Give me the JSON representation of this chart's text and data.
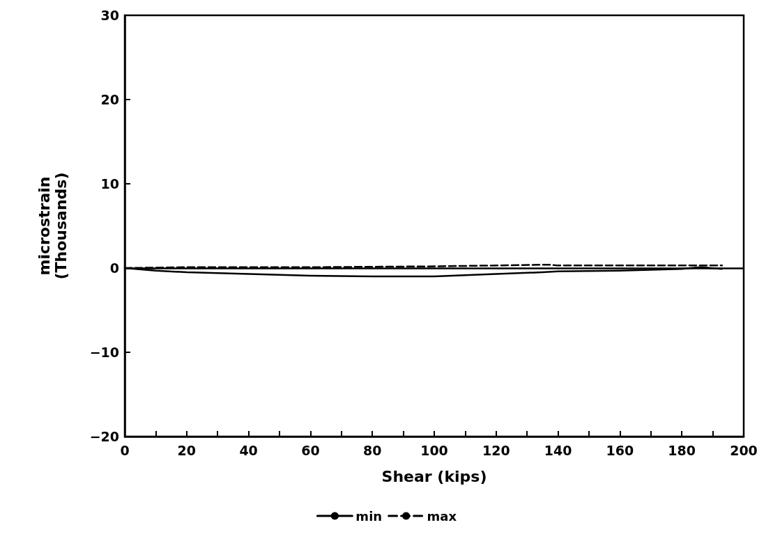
{
  "chart_data": {
    "type": "line",
    "xlabel": "Shear (kips)",
    "ylabel": "microstrain\n(Thousands)",
    "xlim": [
      0,
      200
    ],
    "xticks": [
      0,
      {
        "value": 10,
        "label": null
      },
      20,
      {
        "value": 30,
        "label": null
      },
      40,
      {
        "value": 50,
        "label": null
      },
      60,
      {
        "value": 70,
        "label": null
      },
      80,
      {
        "value": 90,
        "label": null
      },
      100,
      {
        "value": 110,
        "label": null
      },
      120,
      {
        "value": 130,
        "label": null
      },
      140,
      {
        "value": 150,
        "label": null
      },
      160,
      {
        "value": 170,
        "label": null
      },
      180,
      {
        "value": 190,
        "label": null
      },
      200
    ],
    "ylim": [
      -20,
      30
    ],
    "yticks": [
      -20,
      -10,
      0,
      10,
      20,
      30
    ],
    "series": [
      {
        "name": "min",
        "color": "#000000",
        "line_style": "solid",
        "x": [
          0,
          10,
          20,
          40,
          60,
          80,
          100,
          120,
          135,
          140,
          160,
          180,
          186,
          193
        ],
        "values": [
          0,
          -0.3,
          -0.5,
          -0.7,
          -0.9,
          -1.0,
          -1.0,
          -0.7,
          -0.5,
          -0.4,
          -0.3,
          -0.1,
          0.1,
          -0.1
        ]
      },
      {
        "name": "max",
        "color": "#000000",
        "line_style": "dashed",
        "x": [
          0,
          20,
          60,
          100,
          137,
          140,
          180,
          193
        ],
        "values": [
          0,
          0.1,
          0.1,
          0.2,
          0.4,
          0.3,
          0.3,
          0.3
        ]
      }
    ],
    "ref_lines": [
      {
        "axis": "y",
        "value": 0,
        "color": "#000000",
        "line_style": "solid"
      }
    ],
    "legend": "bottom",
    "grid": false,
    "marker": "none"
  }
}
